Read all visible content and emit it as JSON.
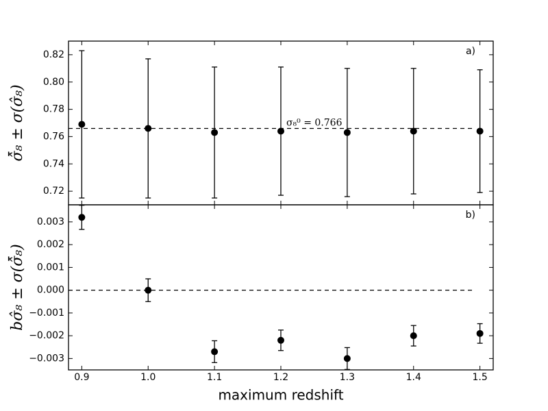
{
  "chart_data": [
    {
      "type": "errorbar",
      "panel_label": "a)",
      "ylabel": "σ̂̄₈ ± σ(σ̂₈)",
      "x": [
        0.9,
        1.0,
        1.1,
        1.2,
        1.3,
        1.4,
        1.5
      ],
      "values": [
        0.769,
        0.766,
        0.763,
        0.764,
        0.763,
        0.764,
        0.764
      ],
      "errors": [
        0.054,
        0.051,
        0.048,
        0.047,
        0.047,
        0.046,
        0.045
      ],
      "color": "#000000",
      "hline": 0.766,
      "annotation": "σ₈⁰ = 0.766",
      "xlim": [
        0.88,
        1.52
      ],
      "ylim": [
        0.71,
        0.83
      ],
      "xticks": [
        0.9,
        1,
        1.1,
        1.2,
        1.3,
        1.4,
        1.5
      ],
      "show_xtick_labels": false,
      "yticks": [
        0.72,
        0.74,
        0.76,
        0.78,
        {
          "value": 0.8,
          "label": "0.80"
        },
        0.82
      ]
    },
    {
      "type": "errorbar",
      "panel_label": "b)",
      "ylabel": "bσ̂₈ ± σ(σ̂̄₈)",
      "xlabel": "maximum redshift",
      "x": [
        0.9,
        1.0,
        1.1,
        1.2,
        1.3,
        1.4,
        1.5
      ],
      "values": [
        0.0032,
        0.0,
        -0.0027,
        -0.0022,
        -0.003,
        -0.002,
        -0.0019
      ],
      "errors": [
        0.00053,
        0.0005,
        0.00048,
        0.00045,
        0.00048,
        0.00045,
        0.00043
      ],
      "color": "#000000",
      "hline": 0,
      "xlim": [
        0.88,
        1.52
      ],
      "ylim": [
        -0.0035,
        0.00375
      ],
      "xticks": [
        0.9,
        {
          "value": 1,
          "label": "1.0"
        },
        1.1,
        1.2,
        1.3,
        1.4,
        1.5
      ],
      "show_xtick_labels": true,
      "yticks": [
        {
          "value": -0.003,
          "label": "−0.003"
        },
        {
          "value": -0.002,
          "label": "−0.002"
        },
        {
          "value": -0.001,
          "label": "−0.001"
        },
        {
          "value": 0,
          "label": "0.000"
        },
        0.001,
        0.002,
        0.003
      ]
    }
  ]
}
